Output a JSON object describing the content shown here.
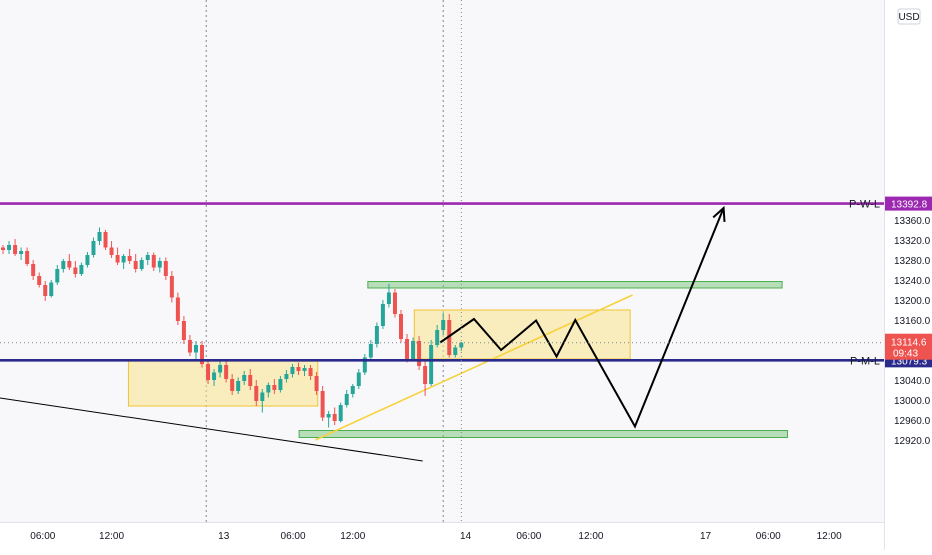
{
  "chart_data": {
    "type": "candlestick",
    "currency": "USD",
    "y_axis": {
      "ticks": [
        13360.0,
        13320.0,
        13280.0,
        13240.0,
        13200.0,
        13160.0,
        13040.0,
        13000.0,
        12960.0,
        12920.0
      ],
      "range": [
        12880,
        13390
      ]
    },
    "x_axis": {
      "ticks": [
        "06:00",
        "12:00",
        "13",
        "06:00",
        "12:00",
        "14",
        "06:00",
        "12:00",
        "17",
        "06:00",
        "12:00"
      ]
    },
    "price_marker": {
      "value": "13114.6",
      "countdown": "09:43",
      "price": 13114.6
    },
    "levels": [
      {
        "label": "P-W-L",
        "value": "13392.8",
        "price": 13392.8,
        "color": "#9c27b0"
      },
      {
        "label": "P-M-L",
        "value": "13079.3",
        "price": 13079.3,
        "color": "#2a2a8c"
      }
    ],
    "candles": [
      [
        13305,
        13310,
        13292,
        13300
      ],
      [
        13300,
        13318,
        13292,
        13310
      ],
      [
        13310,
        13322,
        13288,
        13292
      ],
      [
        13292,
        13305,
        13280,
        13298
      ],
      [
        13298,
        13305,
        13268,
        13272
      ],
      [
        13272,
        13280,
        13240,
        13248
      ],
      [
        13248,
        13255,
        13225,
        13230
      ],
      [
        13230,
        13238,
        13198,
        13208
      ],
      [
        13208,
        13240,
        13205,
        13235
      ],
      [
        13235,
        13270,
        13230,
        13262
      ],
      [
        13262,
        13282,
        13255,
        13278
      ],
      [
        13278,
        13292,
        13260,
        13265
      ],
      [
        13265,
        13278,
        13245,
        13252
      ],
      [
        13252,
        13275,
        13248,
        13270
      ],
      [
        13270,
        13296,
        13265,
        13290
      ],
      [
        13290,
        13325,
        13285,
        13318
      ],
      [
        13318,
        13345,
        13310,
        13336
      ],
      [
        13336,
        13340,
        13300,
        13305
      ],
      [
        13305,
        13318,
        13284,
        13290
      ],
      [
        13290,
        13305,
        13270,
        13275
      ],
      [
        13275,
        13292,
        13262,
        13288
      ],
      [
        13288,
        13302,
        13272,
        13278
      ],
      [
        13278,
        13292,
        13255,
        13262
      ],
      [
        13262,
        13285,
        13258,
        13280
      ],
      [
        13280,
        13296,
        13270,
        13290
      ],
      [
        13290,
        13295,
        13258,
        13265
      ],
      [
        13265,
        13285,
        13255,
        13278
      ],
      [
        13278,
        13285,
        13240,
        13248
      ],
      [
        13248,
        13258,
        13195,
        13205
      ],
      [
        13205,
        13215,
        13150,
        13158
      ],
      [
        13158,
        13168,
        13112,
        13120
      ],
      [
        13120,
        13130,
        13088,
        13095
      ],
      [
        13095,
        13118,
        13080,
        13110
      ],
      [
        13110,
        13118,
        13065,
        13072
      ],
      [
        13072,
        13082,
        13032,
        13040
      ],
      [
        13040,
        13062,
        13028,
        13055
      ],
      [
        13055,
        13078,
        13045,
        13070
      ],
      [
        13070,
        13080,
        13035,
        13042
      ],
      [
        13042,
        13052,
        13010,
        13018
      ],
      [
        13018,
        13045,
        13012,
        13038
      ],
      [
        13038,
        13058,
        13030,
        13050
      ],
      [
        13050,
        13062,
        13020,
        13028
      ],
      [
        13028,
        13040,
        12988,
        12998
      ],
      [
        12998,
        13022,
        12975,
        13015
      ],
      [
        13015,
        13035,
        13005,
        13030
      ],
      [
        13030,
        13042,
        13012,
        13020
      ],
      [
        13020,
        13048,
        13015,
        13042
      ],
      [
        13042,
        13060,
        13035,
        13052
      ],
      [
        13052,
        13072,
        13045,
        13066
      ],
      [
        13066,
        13075,
        13050,
        13058
      ],
      [
        13058,
        13070,
        13048,
        13064
      ],
      [
        13064,
        13070,
        13040,
        13048
      ],
      [
        13048,
        13056,
        13010,
        13018
      ],
      [
        13018,
        13028,
        12958,
        12965
      ],
      [
        12965,
        12978,
        12945,
        12972
      ],
      [
        12972,
        12985,
        12950,
        12958
      ],
      [
        12958,
        12995,
        12955,
        12990
      ],
      [
        12990,
        13020,
        12985,
        13012
      ],
      [
        13012,
        13032,
        13005,
        13028
      ],
      [
        13028,
        13062,
        13022,
        13055
      ],
      [
        13055,
        13092,
        13050,
        13085
      ],
      [
        13085,
        13120,
        13080,
        13112
      ],
      [
        13112,
        13155,
        13105,
        13148
      ],
      [
        13148,
        13200,
        13142,
        13192
      ],
      [
        13192,
        13232,
        13185,
        13215
      ],
      [
        13215,
        13222,
        13165,
        13172
      ],
      [
        13172,
        13180,
        13115,
        13122
      ],
      [
        13122,
        13132,
        13075,
        13082
      ],
      [
        13082,
        13125,
        13078,
        13118
      ],
      [
        13118,
        13128,
        13060,
        13068
      ],
      [
        13068,
        13078,
        13008,
        13032
      ],
      [
        13032,
        13120,
        13028,
        13110
      ],
      [
        13110,
        13150,
        13105,
        13140
      ],
      [
        13140,
        13175,
        13130,
        13160
      ],
      [
        13160,
        13172,
        13085,
        13090
      ],
      [
        13090,
        13110,
        13085,
        13105
      ],
      [
        13105,
        13116,
        13098,
        13114.6
      ]
    ],
    "zones": [
      {
        "kind": "yellow",
        "t0": 21.3,
        "t1": 52.7,
        "p0": 13078,
        "p1": 12988
      },
      {
        "kind": "yellow",
        "t0": 68.7,
        "t1": 104.5,
        "p0": 13180,
        "p1": 13082
      },
      {
        "kind": "green",
        "t0": 61.0,
        "t1": 129.7,
        "p0": 13237,
        "p1": 13224
      },
      {
        "kind": "green",
        "t0": 49.6,
        "t1": 130.6,
        "p0": 12939,
        "p1": 12925
      }
    ],
    "trend_lines": [
      {
        "color": "#f7d23e",
        "points": [
          [
            52.3,
            12920
          ],
          [
            104.9,
            13210
          ]
        ]
      },
      {
        "color": "#000000",
        "points": [
          [
            0,
            13004
          ],
          [
            70.1,
            12878
          ]
        ]
      }
    ],
    "projection": [
      [
        73.0,
        13115
      ],
      [
        78.6,
        13162
      ],
      [
        83.1,
        13100
      ],
      [
        88.9,
        13159
      ],
      [
        92.3,
        13087
      ],
      [
        95.4,
        13160
      ],
      [
        105.3,
        12947
      ],
      [
        120.0,
        13384
      ]
    ],
    "session_lines": [
      34.2,
      73.5
    ],
    "time_ticks": [
      7.1,
      18.5,
      37.1,
      48.6,
      58.5,
      77.2,
      87.7,
      98.0,
      117.0,
      127.4,
      137.5
    ]
  }
}
